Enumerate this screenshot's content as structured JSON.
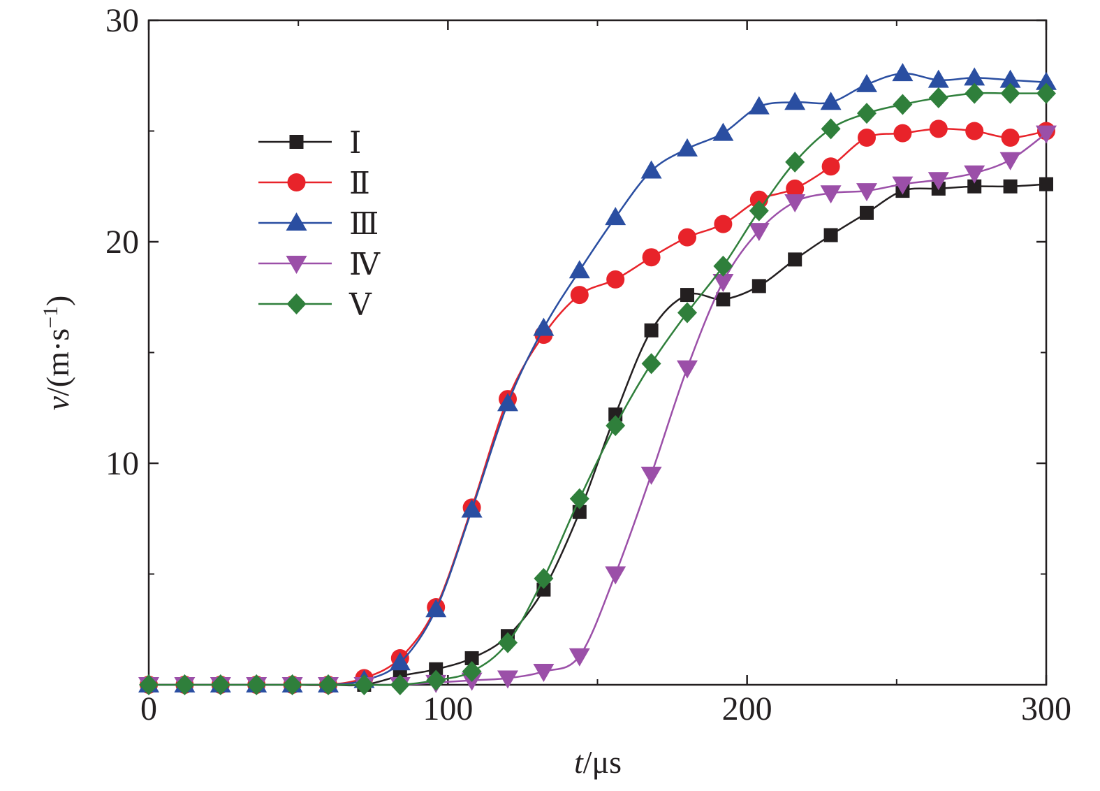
{
  "chart_data": {
    "type": "line",
    "xlabel": "t/μs",
    "ylabel": "v/(m·s−1)",
    "xlabel_parts": {
      "var": "t",
      "rest": "/μs"
    },
    "ylabel_parts": {
      "var": "v",
      "rest": "/(m·s",
      "sup": "−1",
      "close": ")"
    },
    "xlim": [
      0,
      300
    ],
    "ylim": [
      0,
      30
    ],
    "xticks": [
      0,
      100,
      200,
      300
    ],
    "yticks": [
      10,
      20,
      30
    ],
    "minor_yticks": [
      5,
      15,
      25
    ],
    "legend_position": "upper-left",
    "series": [
      {
        "name": "Ⅰ",
        "color": "#231f20",
        "marker": "square",
        "x": [
          0,
          12,
          24,
          36,
          48,
          60,
          72,
          84,
          96,
          108,
          120,
          132,
          144,
          156,
          168,
          180,
          192,
          204,
          216,
          228,
          240,
          252,
          264,
          276,
          288,
          300
        ],
        "y": [
          0,
          0,
          0,
          0,
          0,
          0,
          0,
          0.4,
          0.7,
          1.2,
          2.2,
          4.3,
          7.8,
          12.2,
          16.0,
          17.6,
          17.4,
          18.0,
          19.2,
          20.3,
          21.3,
          22.3,
          22.4,
          22.5,
          22.5,
          22.6
        ]
      },
      {
        "name": "Ⅱ",
        "color": "#e8232a",
        "marker": "circle",
        "x": [
          0,
          12,
          24,
          36,
          48,
          60,
          72,
          84,
          96,
          108,
          120,
          132,
          144,
          156,
          168,
          180,
          192,
          204,
          216,
          228,
          240,
          252,
          264,
          276,
          288,
          300
        ],
        "y": [
          0,
          0,
          0,
          0,
          0,
          0,
          0.3,
          1.2,
          3.5,
          8.0,
          12.9,
          15.8,
          17.6,
          18.3,
          19.3,
          20.2,
          20.8,
          21.9,
          22.4,
          23.4,
          24.7,
          24.9,
          25.1,
          25.0,
          24.7,
          25.0
        ]
      },
      {
        "name": "Ⅲ",
        "color": "#2a4ea1",
        "marker": "triangle-up",
        "x": [
          0,
          12,
          24,
          36,
          48,
          60,
          72,
          84,
          96,
          108,
          120,
          132,
          144,
          156,
          168,
          180,
          192,
          204,
          216,
          228,
          240,
          252,
          264,
          276,
          288,
          300
        ],
        "y": [
          0,
          0,
          0,
          0,
          0,
          0,
          0.2,
          1.0,
          3.4,
          7.9,
          12.7,
          16.1,
          18.7,
          21.1,
          23.2,
          24.2,
          24.9,
          26.1,
          26.3,
          26.3,
          27.1,
          27.6,
          27.3,
          27.4,
          27.3,
          27.2
        ]
      },
      {
        "name": "Ⅳ",
        "color": "#9b4fa8",
        "marker": "triangle-down",
        "x": [
          0,
          12,
          24,
          36,
          48,
          60,
          72,
          84,
          96,
          108,
          120,
          132,
          144,
          156,
          168,
          180,
          192,
          204,
          216,
          228,
          240,
          252,
          264,
          276,
          288,
          300
        ],
        "y": [
          0,
          0,
          0,
          0,
          0,
          0,
          0,
          0,
          0.1,
          0.2,
          0.3,
          0.6,
          1.3,
          5.0,
          9.5,
          14.3,
          18.2,
          20.5,
          21.8,
          22.2,
          22.3,
          22.6,
          22.8,
          23.1,
          23.7,
          24.9
        ]
      },
      {
        "name": "Ⅴ",
        "color": "#2f7f3b",
        "marker": "diamond",
        "x": [
          0,
          12,
          24,
          36,
          48,
          60,
          72,
          84,
          96,
          108,
          120,
          132,
          144,
          156,
          168,
          180,
          192,
          204,
          216,
          228,
          240,
          252,
          264,
          276,
          288,
          300
        ],
        "y": [
          0,
          0,
          0,
          0,
          0,
          0,
          0,
          0,
          0.2,
          0.6,
          1.9,
          4.8,
          8.4,
          11.7,
          14.5,
          16.8,
          18.9,
          21.4,
          23.6,
          25.1,
          25.8,
          26.2,
          26.5,
          26.7,
          26.7,
          26.7
        ]
      }
    ]
  }
}
